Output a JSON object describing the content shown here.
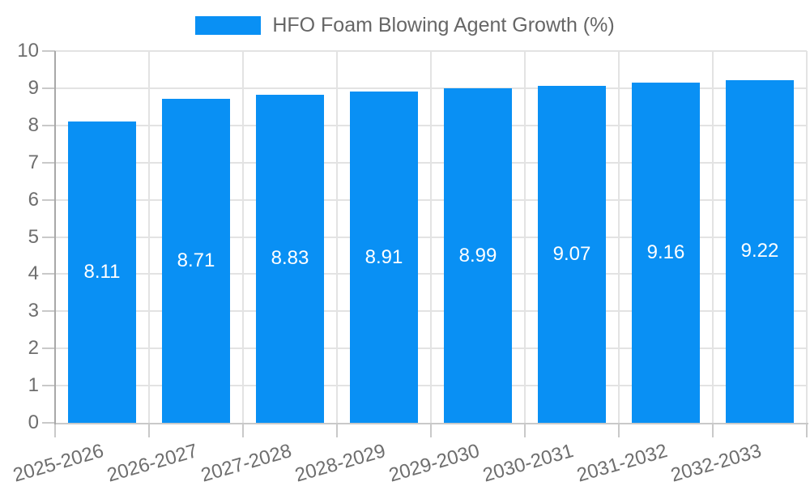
{
  "chart_data": {
    "type": "bar",
    "title": "HFO Foam Blowing Agent Growth (%)",
    "categories": [
      "2025-2026",
      "2026-2027",
      "2027-2028",
      "2028-2029",
      "2029-2030",
      "2030-2031",
      "2031-2032",
      "2032-2033"
    ],
    "values": [
      8.11,
      8.71,
      8.83,
      8.91,
      8.99,
      9.07,
      9.16,
      9.22
    ],
    "value_labels": [
      "8.11",
      "8.71",
      "8.83",
      "8.91",
      "8.99",
      "9.07",
      "9.16",
      "9.22"
    ],
    "xlabel": "",
    "ylabel": "",
    "ylim": [
      0,
      10
    ],
    "ytick_step": 1,
    "ytick_labels": [
      "0",
      "1",
      "2",
      "3",
      "4",
      "5",
      "6",
      "7",
      "8",
      "9",
      "10"
    ],
    "grid": true,
    "legend_position": "top",
    "bar_label_position": "center",
    "colors": {
      "bar": "#0990f4",
      "legend_text": "#666666",
      "axis_text": "#6e6e6e",
      "gridline": "#e3e3e3",
      "tick": "#c9c9c9",
      "baseline": "#c9c9c9",
      "y_axis_line": "#a8a8a8",
      "value_text": "#ffffff",
      "background": "#ffffff"
    }
  }
}
